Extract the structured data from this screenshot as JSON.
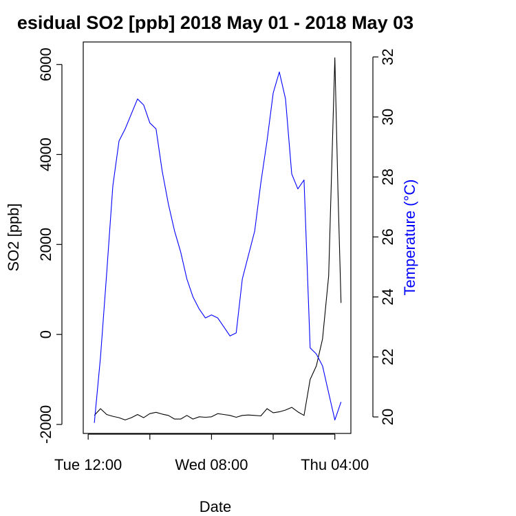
{
  "chart_data": {
    "type": "line",
    "title": "esidual SO2 [ppb] 2018 May 01 - 2018 May 03",
    "xlabel": "Date",
    "ylabel_left": "SO2 [ppb]",
    "ylabel_right": "Temperature (°C)",
    "ylabel_right_color": "#0000ff",
    "x_ticks": [
      {
        "hour": 12,
        "label": "Tue 12:00"
      },
      {
        "hour": 32,
        "label": "Wed 08:00"
      },
      {
        "hour": 52,
        "label": "Thu 04:00"
      }
    ],
    "xlim": [
      11.2,
      54.6
    ],
    "ylim_left": [
      -2200,
      6500
    ],
    "yticks_left": [
      {
        "value": -2000,
        "label": "-2000"
      },
      {
        "value": 0,
        "label": "0"
      },
      {
        "value": 2000,
        "label": "2000"
      },
      {
        "value": 4000,
        "label": "4000"
      },
      {
        "value": 6000,
        "label": "6000"
      }
    ],
    "ylim_right": [
      19.45,
      32.5
    ],
    "yticks_right": [
      {
        "value": 20,
        "label": "20"
      },
      {
        "value": 22,
        "label": "22"
      },
      {
        "value": 24,
        "label": "24"
      },
      {
        "value": 26,
        "label": "26"
      },
      {
        "value": 28,
        "label": "28"
      },
      {
        "value": 30,
        "label": "30"
      },
      {
        "value": 32,
        "label": "32"
      }
    ],
    "series": [
      {
        "axis": "left",
        "color": "#000000",
        "x": [
          13,
          14,
          15,
          16,
          17,
          18,
          19,
          20,
          21,
          22,
          23,
          24,
          25,
          26,
          27,
          28,
          29,
          30,
          31,
          32,
          33,
          34,
          35,
          36,
          37,
          38,
          39,
          40,
          41,
          42,
          43,
          44,
          45,
          46,
          47,
          48,
          49,
          50,
          51,
          52,
          52.5,
          53
        ],
        "y": [
          -1800,
          -1650,
          -1780,
          -1820,
          -1850,
          -1900,
          -1850,
          -1780,
          -1850,
          -1760,
          -1730,
          -1770,
          -1800,
          -1880,
          -1880,
          -1800,
          -1880,
          -1830,
          -1840,
          -1830,
          -1760,
          -1780,
          -1800,
          -1840,
          -1800,
          -1790,
          -1800,
          -1810,
          -1650,
          -1740,
          -1720,
          -1680,
          -1620,
          -1720,
          -1800,
          -1000,
          -700,
          -100,
          1300,
          6150,
          3200,
          700
        ]
      },
      {
        "axis": "right",
        "color": "#0000ff",
        "x": [
          13,
          14,
          15,
          16,
          17,
          18,
          19,
          20,
          21,
          22,
          23,
          24,
          25,
          26,
          27,
          28,
          29,
          30,
          31,
          32,
          33,
          34,
          35,
          36,
          37,
          38,
          39,
          40,
          41,
          42,
          43,
          44,
          45,
          46,
          47,
          48,
          49,
          50,
          51,
          52,
          53
        ],
        "y": [
          19.8,
          22.0,
          24.8,
          27.7,
          29.2,
          29.6,
          30.1,
          30.6,
          30.4,
          29.8,
          29.6,
          28.2,
          27.1,
          26.2,
          25.5,
          24.6,
          24.0,
          23.6,
          23.3,
          23.4,
          23.3,
          23.0,
          22.7,
          22.8,
          24.6,
          25.4,
          26.2,
          27.8,
          29.2,
          30.8,
          31.5,
          30.6,
          28.1,
          27.6,
          27.9,
          22.3,
          22.1,
          21.7,
          20.8,
          19.9,
          20.5
        ]
      }
    ]
  }
}
